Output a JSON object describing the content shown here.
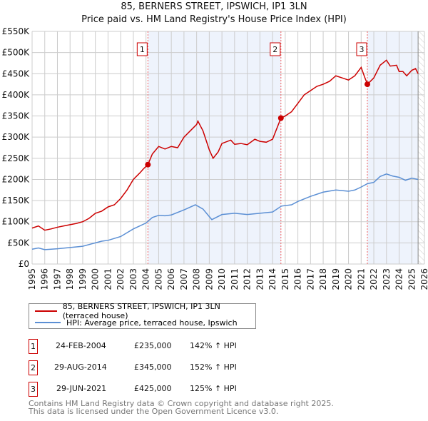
{
  "chart_data": {
    "type": "line",
    "title": "85, BERNERS STREET, IPSWICH, IP1 3LN",
    "subtitle": "Price paid vs. HM Land Registry's House Price Index (HPI)",
    "xlim": [
      1995,
      2026
    ],
    "ylim": [
      0,
      550000
    ],
    "x_ticks": [
      "1995",
      "1996",
      "1997",
      "1998",
      "1999",
      "2000",
      "2001",
      "2002",
      "2003",
      "2004",
      "2005",
      "2006",
      "2007",
      "2008",
      "2009",
      "2010",
      "2011",
      "2012",
      "2013",
      "2014",
      "2015",
      "2016",
      "2017",
      "2018",
      "2019",
      "2020",
      "2021",
      "2022",
      "2023",
      "2024",
      "2025",
      "2026"
    ],
    "y_ticks": [
      {
        "v": 0,
        "label": "£0"
      },
      {
        "v": 50000,
        "label": "£50K"
      },
      {
        "v": 100000,
        "label": "£100K"
      },
      {
        "v": 150000,
        "label": "£150K"
      },
      {
        "v": 200000,
        "label": "£200K"
      },
      {
        "v": 250000,
        "label": "£250K"
      },
      {
        "v": 300000,
        "label": "£300K"
      },
      {
        "v": 350000,
        "label": "£350K"
      },
      {
        "v": 400000,
        "label": "£400K"
      },
      {
        "v": 450000,
        "label": "£450K"
      },
      {
        "v": 500000,
        "label": "£500K"
      },
      {
        "v": 550000,
        "label": "£550K"
      }
    ],
    "grid": true,
    "series": [
      {
        "name": "85, BERNERS STREET, IPSWICH, IP1 3LN (terraced house)",
        "color": "#cc0000",
        "x": [
          1995,
          1995.5,
          1996,
          1996.5,
          1997,
          1997.5,
          1998,
          1998.5,
          1999,
          1999.5,
          2000,
          2000.5,
          2001,
          2001.5,
          2002,
          2002.5,
          2003,
          2003.5,
          2003.8,
          2004.15,
          2004.5,
          2005,
          2005.5,
          2006,
          2006.5,
          2007,
          2007.5,
          2008,
          2008.1,
          2008.5,
          2009,
          2009.3,
          2009.7,
          2010,
          2010.7,
          2011,
          2011.5,
          2012,
          2012.6,
          2013,
          2013.5,
          2014,
          2014.66,
          2015,
          2015.5,
          2016,
          2016.5,
          2017,
          2017.5,
          2018,
          2018.5,
          2019,
          2019.5,
          2020,
          2020.5,
          2021,
          2021.3,
          2021.5,
          2022,
          2022.5,
          2023,
          2023.3,
          2023.8,
          2024,
          2024.3,
          2024.6,
          2025,
          2025.3,
          2025.5
        ],
        "y": [
          85000,
          90000,
          80000,
          83000,
          87000,
          90000,
          93000,
          96000,
          100000,
          108000,
          120000,
          125000,
          135000,
          140000,
          155000,
          175000,
          200000,
          215000,
          225000,
          235000,
          260000,
          278000,
          272000,
          278000,
          275000,
          300000,
          315000,
          330000,
          338000,
          315000,
          270000,
          250000,
          265000,
          285000,
          293000,
          283000,
          285000,
          282000,
          295000,
          290000,
          288000,
          295000,
          345000,
          350000,
          360000,
          380000,
          400000,
          410000,
          420000,
          425000,
          432000,
          445000,
          440000,
          435000,
          445000,
          465000,
          440000,
          425000,
          440000,
          470000,
          482000,
          468000,
          470000,
          455000,
          455000,
          445000,
          458000,
          462000,
          450000
        ]
      },
      {
        "name": "HPI: Average price, terraced house, Ipswich",
        "color": "#5b8fd4",
        "x": [
          1995,
          1995.5,
          1996,
          1997,
          1998,
          1999,
          2000,
          2000.5,
          2001,
          2002,
          2003,
          2003.5,
          2004,
          2004.5,
          2005,
          2005.5,
          2006,
          2007,
          2007.9,
          2008.5,
          2009.2,
          2010,
          2011,
          2012,
          2013,
          2014,
          2014.7,
          2015.5,
          2016,
          2017,
          2018,
          2019,
          2020,
          2020.5,
          2021,
          2021.5,
          2022,
          2022.5,
          2023,
          2023.5,
          2024,
          2024.5,
          2025,
          2025.5
        ],
        "y": [
          35000,
          38000,
          34000,
          36000,
          39000,
          42000,
          50000,
          54000,
          56000,
          65000,
          83000,
          90000,
          97000,
          110000,
          115000,
          114000,
          116000,
          128000,
          140000,
          130000,
          105000,
          117000,
          120000,
          117000,
          120000,
          123000,
          137000,
          140000,
          148000,
          160000,
          170000,
          175000,
          172000,
          175000,
          182000,
          190000,
          193000,
          207000,
          213000,
          208000,
          205000,
          198000,
          203000,
          200000
        ]
      }
    ],
    "sales": [
      {
        "n": "1",
        "x": 2004.15,
        "y": 235000,
        "date": "24-FEB-2004",
        "price": "£235,000",
        "hpi": "142% ↑ HPI"
      },
      {
        "n": "2",
        "x": 2014.66,
        "y": 345000,
        "date": "29-AUG-2014",
        "price": "£345,000",
        "hpi": "152% ↑ HPI"
      },
      {
        "n": "3",
        "x": 2021.49,
        "y": 425000,
        "date": "29-JUN-2021",
        "price": "£425,000",
        "hpi": "125% ↑ HPI"
      }
    ],
    "shaded_ranges": [
      [
        2004.15,
        2014.66
      ],
      [
        2021.49,
        2025.5
      ]
    ],
    "hatched_from": 2025.5,
    "legend": {
      "location": "below"
    }
  },
  "footer": {
    "line1": "Contains HM Land Registry data © Crown copyright and database right 2025.",
    "line2": "This data is licensed under the Open Government Licence v3.0."
  }
}
